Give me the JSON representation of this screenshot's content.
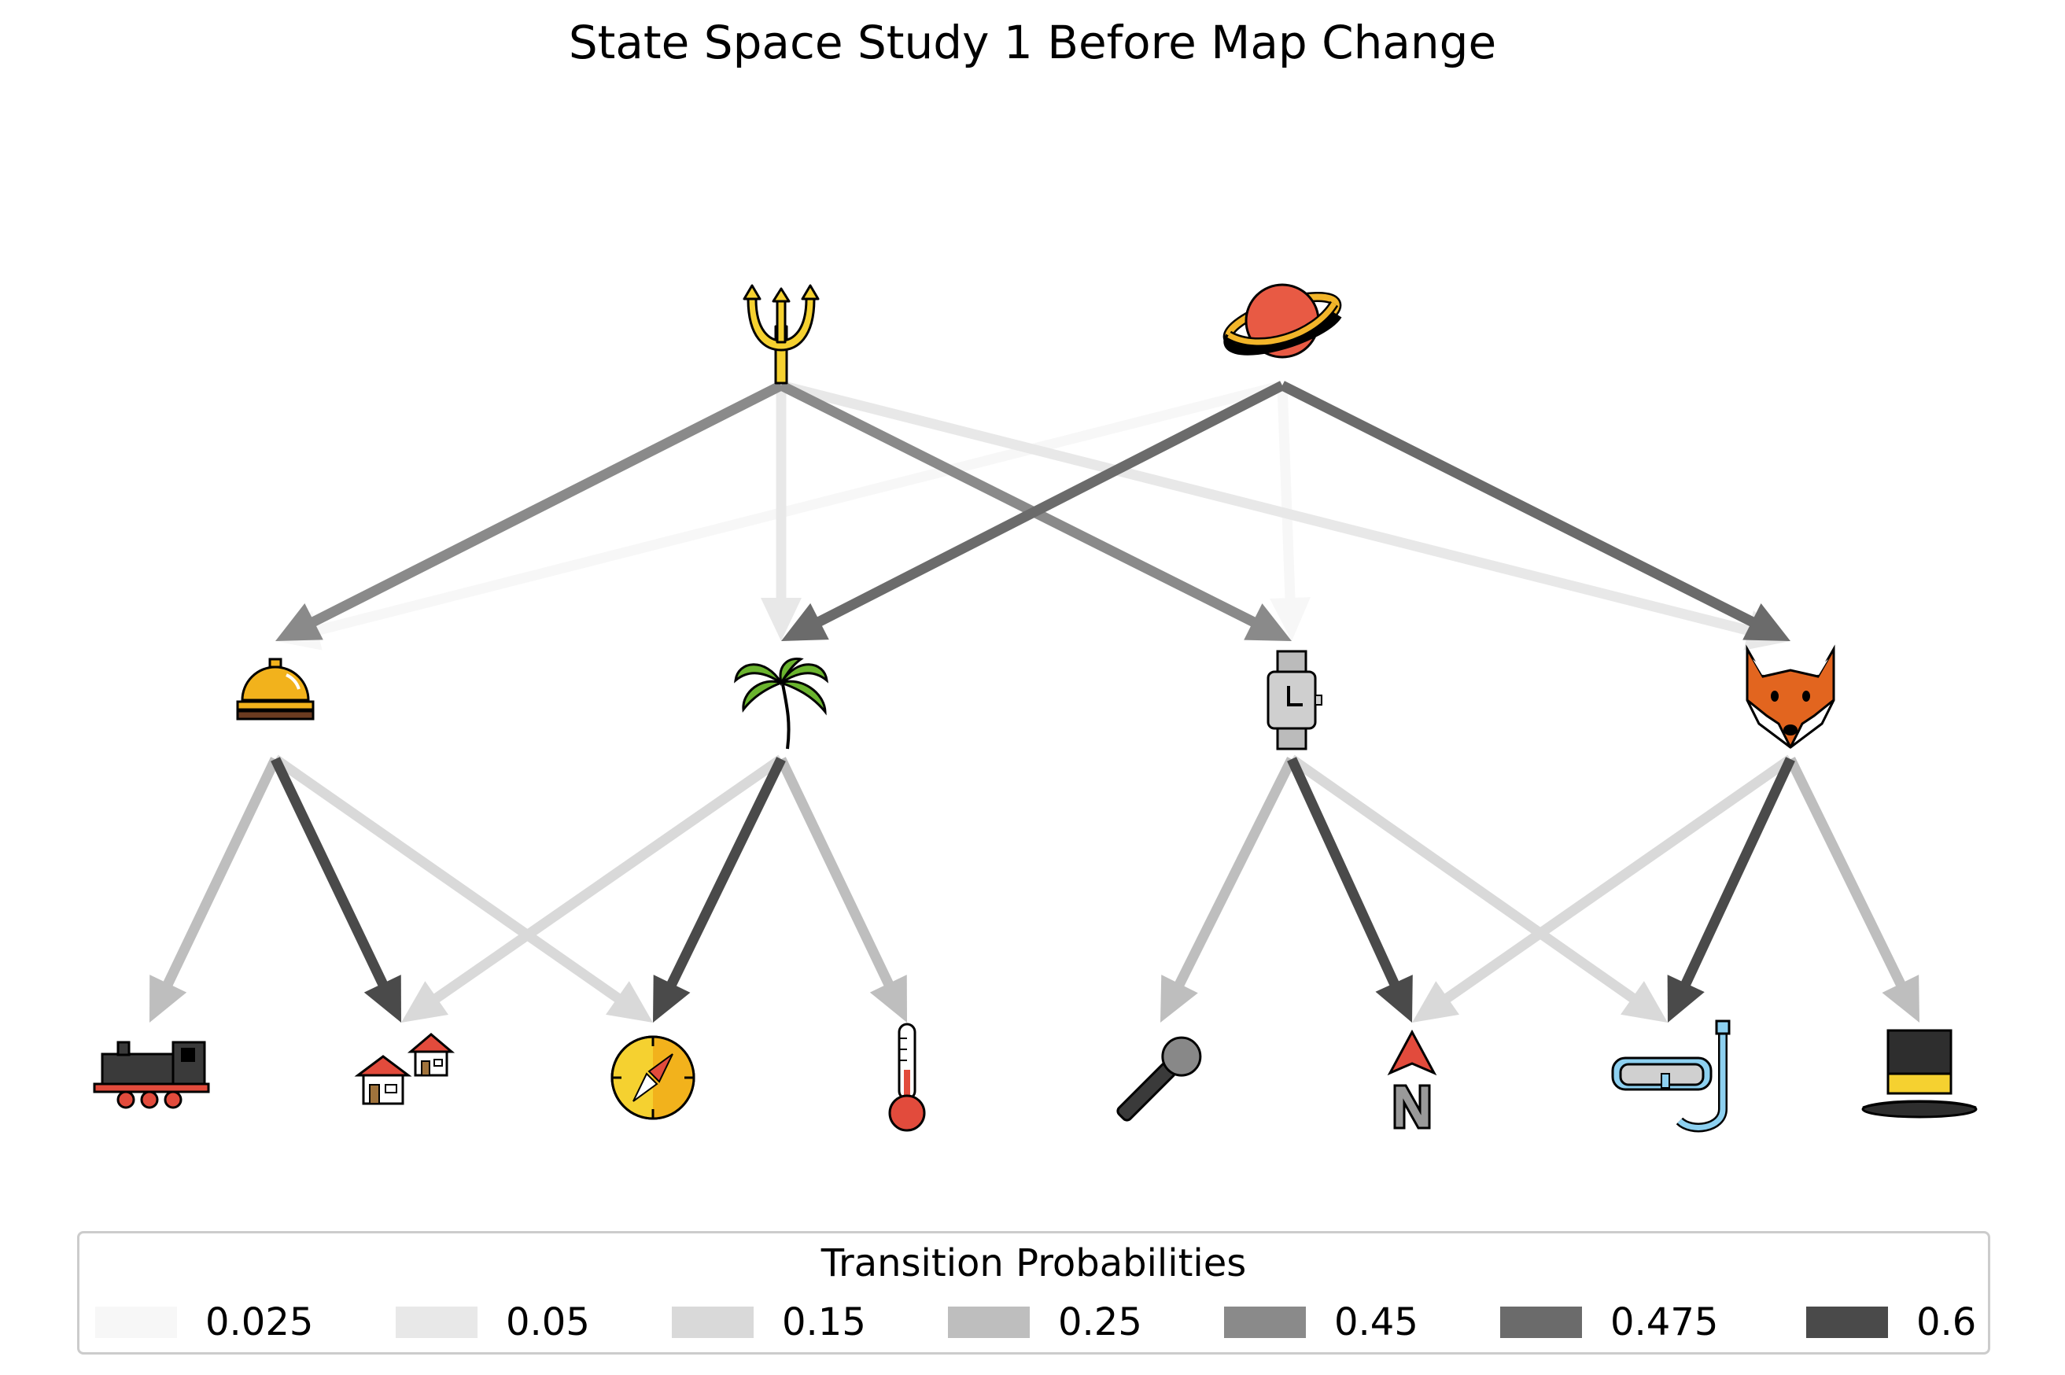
{
  "title": "State Space Study 1 Before Map Change",
  "nodes": {
    "top": [
      {
        "id": "trident",
        "icon": "trident-icon"
      },
      {
        "id": "planet",
        "icon": "ringed-planet-icon"
      }
    ],
    "middle": [
      {
        "id": "bell",
        "icon": "bellhop-bell-icon"
      },
      {
        "id": "palm",
        "icon": "palm-tree-icon"
      },
      {
        "id": "watch",
        "icon": "wristwatch-icon"
      },
      {
        "id": "fox",
        "icon": "fox-face-icon"
      }
    ],
    "bottom": [
      {
        "id": "train",
        "icon": "locomotive-icon"
      },
      {
        "id": "houses",
        "icon": "houses-icon"
      },
      {
        "id": "compass",
        "icon": "compass-icon"
      },
      {
        "id": "thermometer",
        "icon": "thermometer-icon"
      },
      {
        "id": "microphone",
        "icon": "microphone-icon"
      },
      {
        "id": "north",
        "icon": "north-arrow-icon"
      },
      {
        "id": "snorkel",
        "icon": "diving-mask-icon"
      },
      {
        "id": "tophat",
        "icon": "top-hat-icon"
      }
    ]
  },
  "edges": [
    {
      "from": "trident",
      "to": "bell",
      "p": 0.45
    },
    {
      "from": "trident",
      "to": "palm",
      "p": 0.05
    },
    {
      "from": "trident",
      "to": "watch",
      "p": 0.45
    },
    {
      "from": "trident",
      "to": "fox",
      "p": 0.05
    },
    {
      "from": "planet",
      "to": "bell",
      "p": 0.025
    },
    {
      "from": "planet",
      "to": "palm",
      "p": 0.475
    },
    {
      "from": "planet",
      "to": "watch",
      "p": 0.025
    },
    {
      "from": "planet",
      "to": "fox",
      "p": 0.475
    },
    {
      "from": "bell",
      "to": "train",
      "p": 0.25
    },
    {
      "from": "bell",
      "to": "houses",
      "p": 0.6
    },
    {
      "from": "bell",
      "to": "compass",
      "p": 0.15
    },
    {
      "from": "palm",
      "to": "houses",
      "p": 0.15
    },
    {
      "from": "palm",
      "to": "compass",
      "p": 0.6
    },
    {
      "from": "palm",
      "to": "thermometer",
      "p": 0.25
    },
    {
      "from": "watch",
      "to": "microphone",
      "p": 0.25
    },
    {
      "from": "watch",
      "to": "north",
      "p": 0.6
    },
    {
      "from": "watch",
      "to": "snorkel",
      "p": 0.15
    },
    {
      "from": "fox",
      "to": "north",
      "p": 0.15
    },
    {
      "from": "fox",
      "to": "snorkel",
      "p": 0.6
    },
    {
      "from": "fox",
      "to": "tophat",
      "p": 0.25
    }
  ],
  "legend": {
    "title": "Transition Probabilities",
    "items": [
      {
        "label": "0.025",
        "color": "#f7f7f7"
      },
      {
        "label": "0.05",
        "color": "#e8e8e8"
      },
      {
        "label": "0.15",
        "color": "#d9d9d9"
      },
      {
        "label": "0.25",
        "color": "#bebebe"
      },
      {
        "label": "0.45",
        "color": "#8a8a8a"
      },
      {
        "label": "0.475",
        "color": "#6b6b6b"
      },
      {
        "label": "0.6",
        "color": "#4a4a4a"
      }
    ]
  }
}
